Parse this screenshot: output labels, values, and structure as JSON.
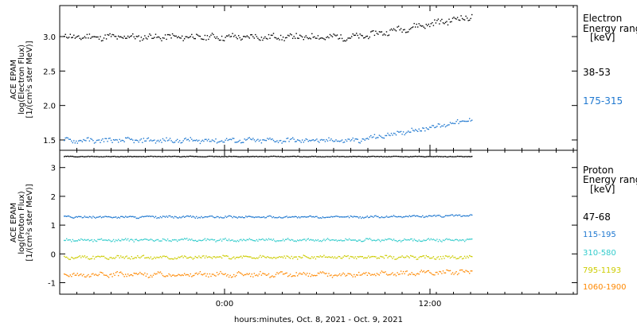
{
  "chart_data": [
    {
      "type": "scatter",
      "panel": "electron",
      "ylabel_lines": [
        "ACE EPAM",
        "log(Electron Flux)",
        "[1/(cm²s ster MeV)]"
      ],
      "yticks": [
        "1.5",
        "2.0",
        "2.5",
        "3.0"
      ],
      "ylim": [
        1.35,
        3.45
      ],
      "legend_title": [
        "Electron",
        "Energy ranges",
        "[keV]"
      ],
      "series": [
        {
          "name": "38-53",
          "color": "#000000",
          "base": 3.0,
          "rise_to": 3.3,
          "jitter": 0.04
        },
        {
          "name": "175-315",
          "color": "#1f78d0",
          "base": 1.5,
          "rise_to": 1.8,
          "jitter": 0.03
        }
      ]
    },
    {
      "type": "scatter",
      "panel": "proton",
      "ylabel_lines": [
        "ACE EPAM",
        "log(Proton Flux)",
        "[1/(cm²s ster MeV)]"
      ],
      "yticks": [
        "-1",
        "0",
        "1",
        "2",
        "3"
      ],
      "ylim": [
        -1.4,
        3.6
      ],
      "legend_title": [
        "Proton",
        "Energy ranges",
        "[keV]"
      ],
      "series": [
        {
          "name": "47-68",
          "color": "#000000",
          "base": 3.4,
          "rise_to": 3.4,
          "jitter": 0.01
        },
        {
          "name": "115-195",
          "color": "#1f78d0",
          "base": 1.3,
          "rise_to": 1.35,
          "jitter": 0.03
        },
        {
          "name": "310-580",
          "color": "#33cccc",
          "base": 0.5,
          "rise_to": 0.5,
          "jitter": 0.04
        },
        {
          "name": "795-1193",
          "color": "#cccc00",
          "base": -0.1,
          "rise_to": -0.1,
          "jitter": 0.05
        },
        {
          "name": "1060-1900",
          "color": "#ff8800",
          "base": -0.7,
          "rise_to": -0.6,
          "jitter": 0.07
        }
      ]
    }
  ],
  "xaxis": {
    "ticks": [
      "0:00",
      "12:00"
    ],
    "label": "hours:minutes, Oct.  8, 2021 - Oct.  9, 2021"
  }
}
